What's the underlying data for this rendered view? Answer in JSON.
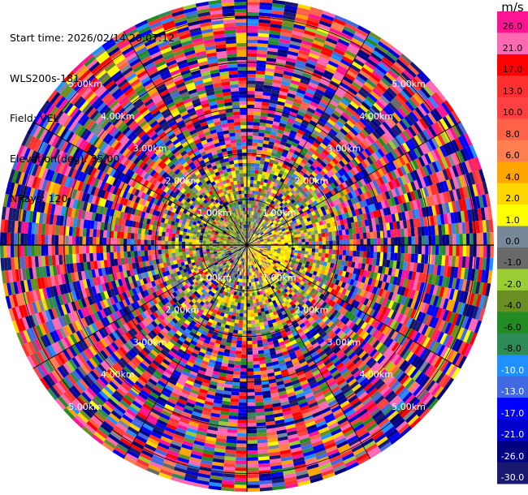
{
  "header": {
    "start_time": "Start time: 2026/02/14 20:07:12",
    "instrument": "WLS200s-181",
    "field": "Field: VEL",
    "elevation": "Elevation(deg): 35.00",
    "nrays": "NRays: 120"
  },
  "colorbar": {
    "unit": "m/s",
    "labels": [
      "26.0",
      "21.0",
      "17.0",
      "13.0",
      "10.0",
      "8.0",
      "6.0",
      "4.0",
      "2.0",
      "1.0",
      "0.0",
      "-1.0",
      "-2.0",
      "-4.0",
      "-6.0",
      "-8.0",
      "-10.0",
      "-13.0",
      "-17.0",
      "-21.0",
      "-26.0",
      "-30.0"
    ],
    "label_colors": [
      "#000000",
      "#000000",
      "#000000",
      "#000000",
      "#000000",
      "#000000",
      "#000000",
      "#000000",
      "#000000",
      "#000000",
      "#000000",
      "#000000",
      "#000000",
      "#000000",
      "#000000",
      "#000000",
      "#ffffff",
      "#ffffff",
      "#ffffff",
      "#ffffff",
      "#ffffff",
      "#ffffff"
    ],
    "bins": [
      {
        "from": 26.0,
        "to": 30.0,
        "color": "#ff1493"
      },
      {
        "from": 21.0,
        "to": 26.0,
        "color": "#ff69b4"
      },
      {
        "from": 17.0,
        "to": 21.0,
        "color": "#ff0000"
      },
      {
        "from": 13.0,
        "to": 17.0,
        "color": "#ff3030"
      },
      {
        "from": 10.0,
        "to": 13.0,
        "color": "#ff4040"
      },
      {
        "from": 8.0,
        "to": 10.0,
        "color": "#ff6347"
      },
      {
        "from": 6.0,
        "to": 8.0,
        "color": "#ff7f50"
      },
      {
        "from": 4.0,
        "to": 6.0,
        "color": "#ffa500"
      },
      {
        "from": 2.0,
        "to": 4.0,
        "color": "#ffd700"
      },
      {
        "from": 1.0,
        "to": 2.0,
        "color": "#ffff00"
      },
      {
        "from": 0.0,
        "to": 1.0,
        "color": "#778899"
      },
      {
        "from": -1.0,
        "to": 0.0,
        "color": "#696969"
      },
      {
        "from": -2.0,
        "to": -1.0,
        "color": "#9acd32"
      },
      {
        "from": -4.0,
        "to": -2.0,
        "color": "#6b8e23"
      },
      {
        "from": -6.0,
        "to": -4.0,
        "color": "#228b22"
      },
      {
        "from": -8.0,
        "to": -6.0,
        "color": "#2e8b57"
      },
      {
        "from": -10.0,
        "to": -8.0,
        "color": "#1e90ff"
      },
      {
        "from": -13.0,
        "to": -10.0,
        "color": "#4169e1"
      },
      {
        "from": -17.0,
        "to": -13.0,
        "color": "#0000ff"
      },
      {
        "from": -21.0,
        "to": -17.0,
        "color": "#0000cd"
      },
      {
        "from": -26.0,
        "to": -21.0,
        "color": "#000080"
      },
      {
        "from": -30.0,
        "to": -26.0,
        "color": "#191970"
      }
    ]
  },
  "chart_data": {
    "type": "heatmap",
    "projection": "polar PPI",
    "title": "",
    "field": "VEL",
    "nrays": 120,
    "elevation_deg": 35.0,
    "range_ring_labels": [
      "1.00km",
      "2.00km",
      "3.00km",
      "4.00km",
      "5.00km"
    ],
    "range_rings_km": [
      1,
      2,
      3,
      4,
      5
    ],
    "max_range_km": 5.4,
    "value_range": [
      -30.0,
      30.0
    ],
    "grid": true
  }
}
